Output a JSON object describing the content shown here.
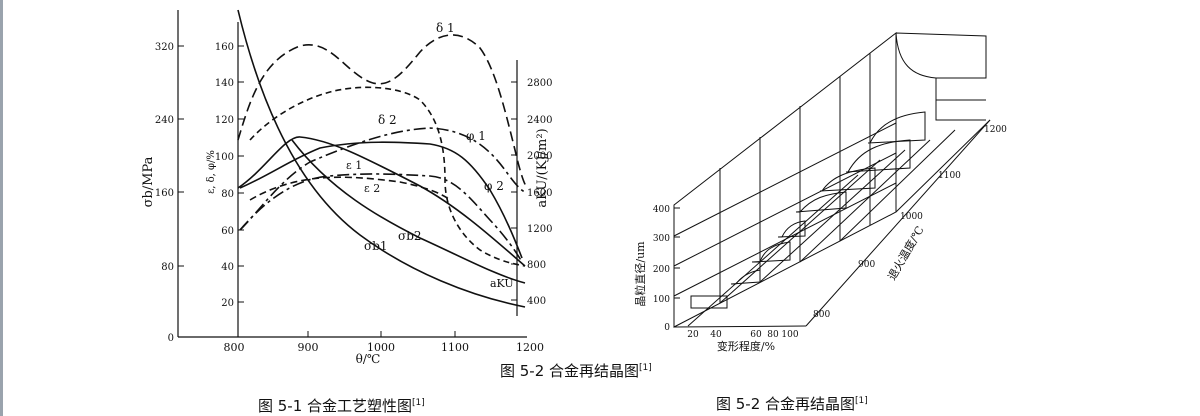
{
  "fig1": {
    "caption": "图 5-1 合金工艺塑性图",
    "caption_ref": "[1]",
    "axes": {
      "sigma_label": "σb/MPa",
      "strain_label": "ε, δ, φ/%",
      "aku_label": "aKU/(KJ/m²)",
      "theta_label": "θ/℃"
    },
    "sigma_ticks": [
      "320",
      "240",
      "160",
      "80",
      "0"
    ],
    "strain_ticks": [
      "160",
      "140",
      "120",
      "100",
      "80",
      "60",
      "40",
      "20"
    ],
    "aku_ticks": [
      "2800",
      "2400",
      "2000",
      "1600",
      "1200",
      "800",
      "400"
    ],
    "theta_ticks": [
      "800",
      "900",
      "1000",
      "1100",
      "1200"
    ],
    "curve_labels": {
      "delta1": "δ 1",
      "delta2": "δ 2",
      "phi1": "φ 1",
      "phi2": "φ 2",
      "eps1": "ε 1",
      "eps2": "ε 2",
      "sigma_b1": "σb1",
      "sigma_b2": "σb2",
      "aku": "aKU"
    }
  },
  "fig2": {
    "caption": "图 5-2 合金再结晶图",
    "caption_ref": "[1]",
    "top_caption": "图 5-2 合金再结晶图",
    "top_caption_ref": "[1]",
    "vertical_label": "晶粒直径/um",
    "vertical_ticks": [
      "400",
      "300",
      "200",
      "100",
      "0"
    ],
    "deformation_label": "变形程度/%",
    "deformation_ticks": [
      "20",
      "40",
      "60",
      "80",
      "100"
    ],
    "temperature_label": "退火温度/℃",
    "temperature_ticks": [
      "800",
      "900",
      "1000",
      "1100",
      "1200"
    ]
  }
}
